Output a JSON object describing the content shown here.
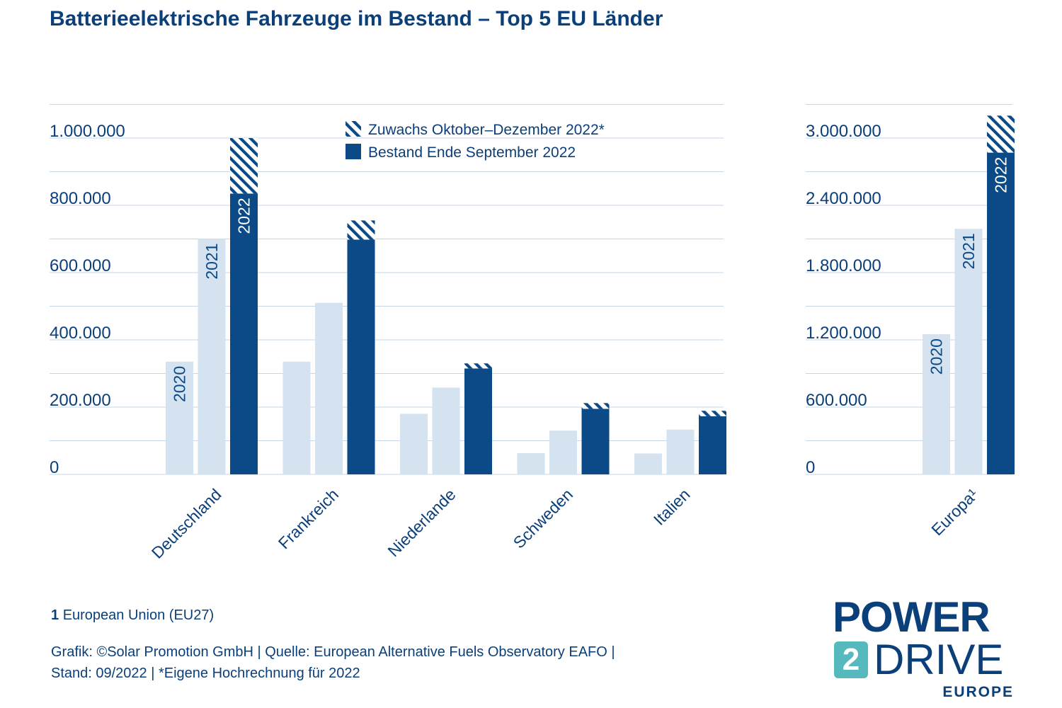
{
  "colors": {
    "bar2020": "#d5e2ef",
    "bar2021": "#d5e2ef",
    "bar2022": "#0b4a86",
    "label_dark": "#0b4a86",
    "label_light": "#ffffff",
    "grid": "#c5d6e8",
    "text": "#0b3f7a"
  },
  "chart_data": [
    {
      "type": "bar",
      "title": "Batterieelektrische Fahrzeuge im Bestand – Top 5 EU Länder",
      "categories": [
        "Deutschland",
        "Frankreich",
        "Niederlande",
        "Schweden",
        "Italien"
      ],
      "ylim": [
        0,
        1000000
      ],
      "yticks": [
        0,
        200000,
        400000,
        600000,
        800000,
        1000000
      ],
      "ytick_labels": [
        "0",
        "200.000",
        "400.000",
        "600.000",
        "800.000",
        "1.000.000"
      ],
      "stacked_2022": true,
      "series": [
        {
          "year": "2020",
          "values": [
            335000,
            335000,
            180000,
            63000,
            62000
          ]
        },
        {
          "year": "2021",
          "values": [
            700000,
            510000,
            258000,
            130000,
            133000
          ]
        },
        {
          "year": "2022",
          "name": "Bestand Ende September 2022",
          "values": [
            835000,
            698000,
            315000,
            195000,
            173000
          ]
        },
        {
          "year": "2022",
          "name": "Zuwachs Oktober–Dezember 2022*",
          "values": [
            165000,
            57000,
            15000,
            17000,
            16000
          ]
        }
      ],
      "year_labels_shown_for": "Deutschland",
      "legend": {
        "position": "top-center",
        "entries": [
          "Zuwachs Oktober–Dezember 2022*",
          "Bestand Ende September 2022"
        ]
      },
      "grid": true
    },
    {
      "type": "bar",
      "categories": [
        "Europa¹"
      ],
      "ylim": [
        0,
        3000000
      ],
      "yticks": [
        0,
        600000,
        1200000,
        1800000,
        2400000,
        3000000
      ],
      "ytick_labels": [
        "0",
        "600.000",
        "1.200.000",
        "1.800.000",
        "2.400.000",
        "3.000.000"
      ],
      "stacked_2022": true,
      "series": [
        {
          "year": "2020",
          "values": [
            1250000
          ]
        },
        {
          "year": "2021",
          "values": [
            2190000
          ]
        },
        {
          "year": "2022",
          "name": "Bestand Ende September 2022",
          "values": [
            2870000
          ]
        },
        {
          "year": "2022",
          "name": "Zuwachs Oktober–Dezember 2022*",
          "values": [
            330000
          ]
        }
      ],
      "year_labels_shown_for": "Europa¹",
      "grid": true
    }
  ],
  "footnote": {
    "marker": "1",
    "text": "European Union (EU27)"
  },
  "source": {
    "line1": "Grafik: ©Solar Promotion GmbH | Quelle: European Alternative Fuels Observatory EAFO |",
    "line2": "Stand: 09/2022 | *Eigene Hochrechnung für 2022"
  },
  "logo": {
    "line1": "POWER",
    "badge": "2",
    "line2": "DRIVE",
    "line3": "EUROPE"
  }
}
